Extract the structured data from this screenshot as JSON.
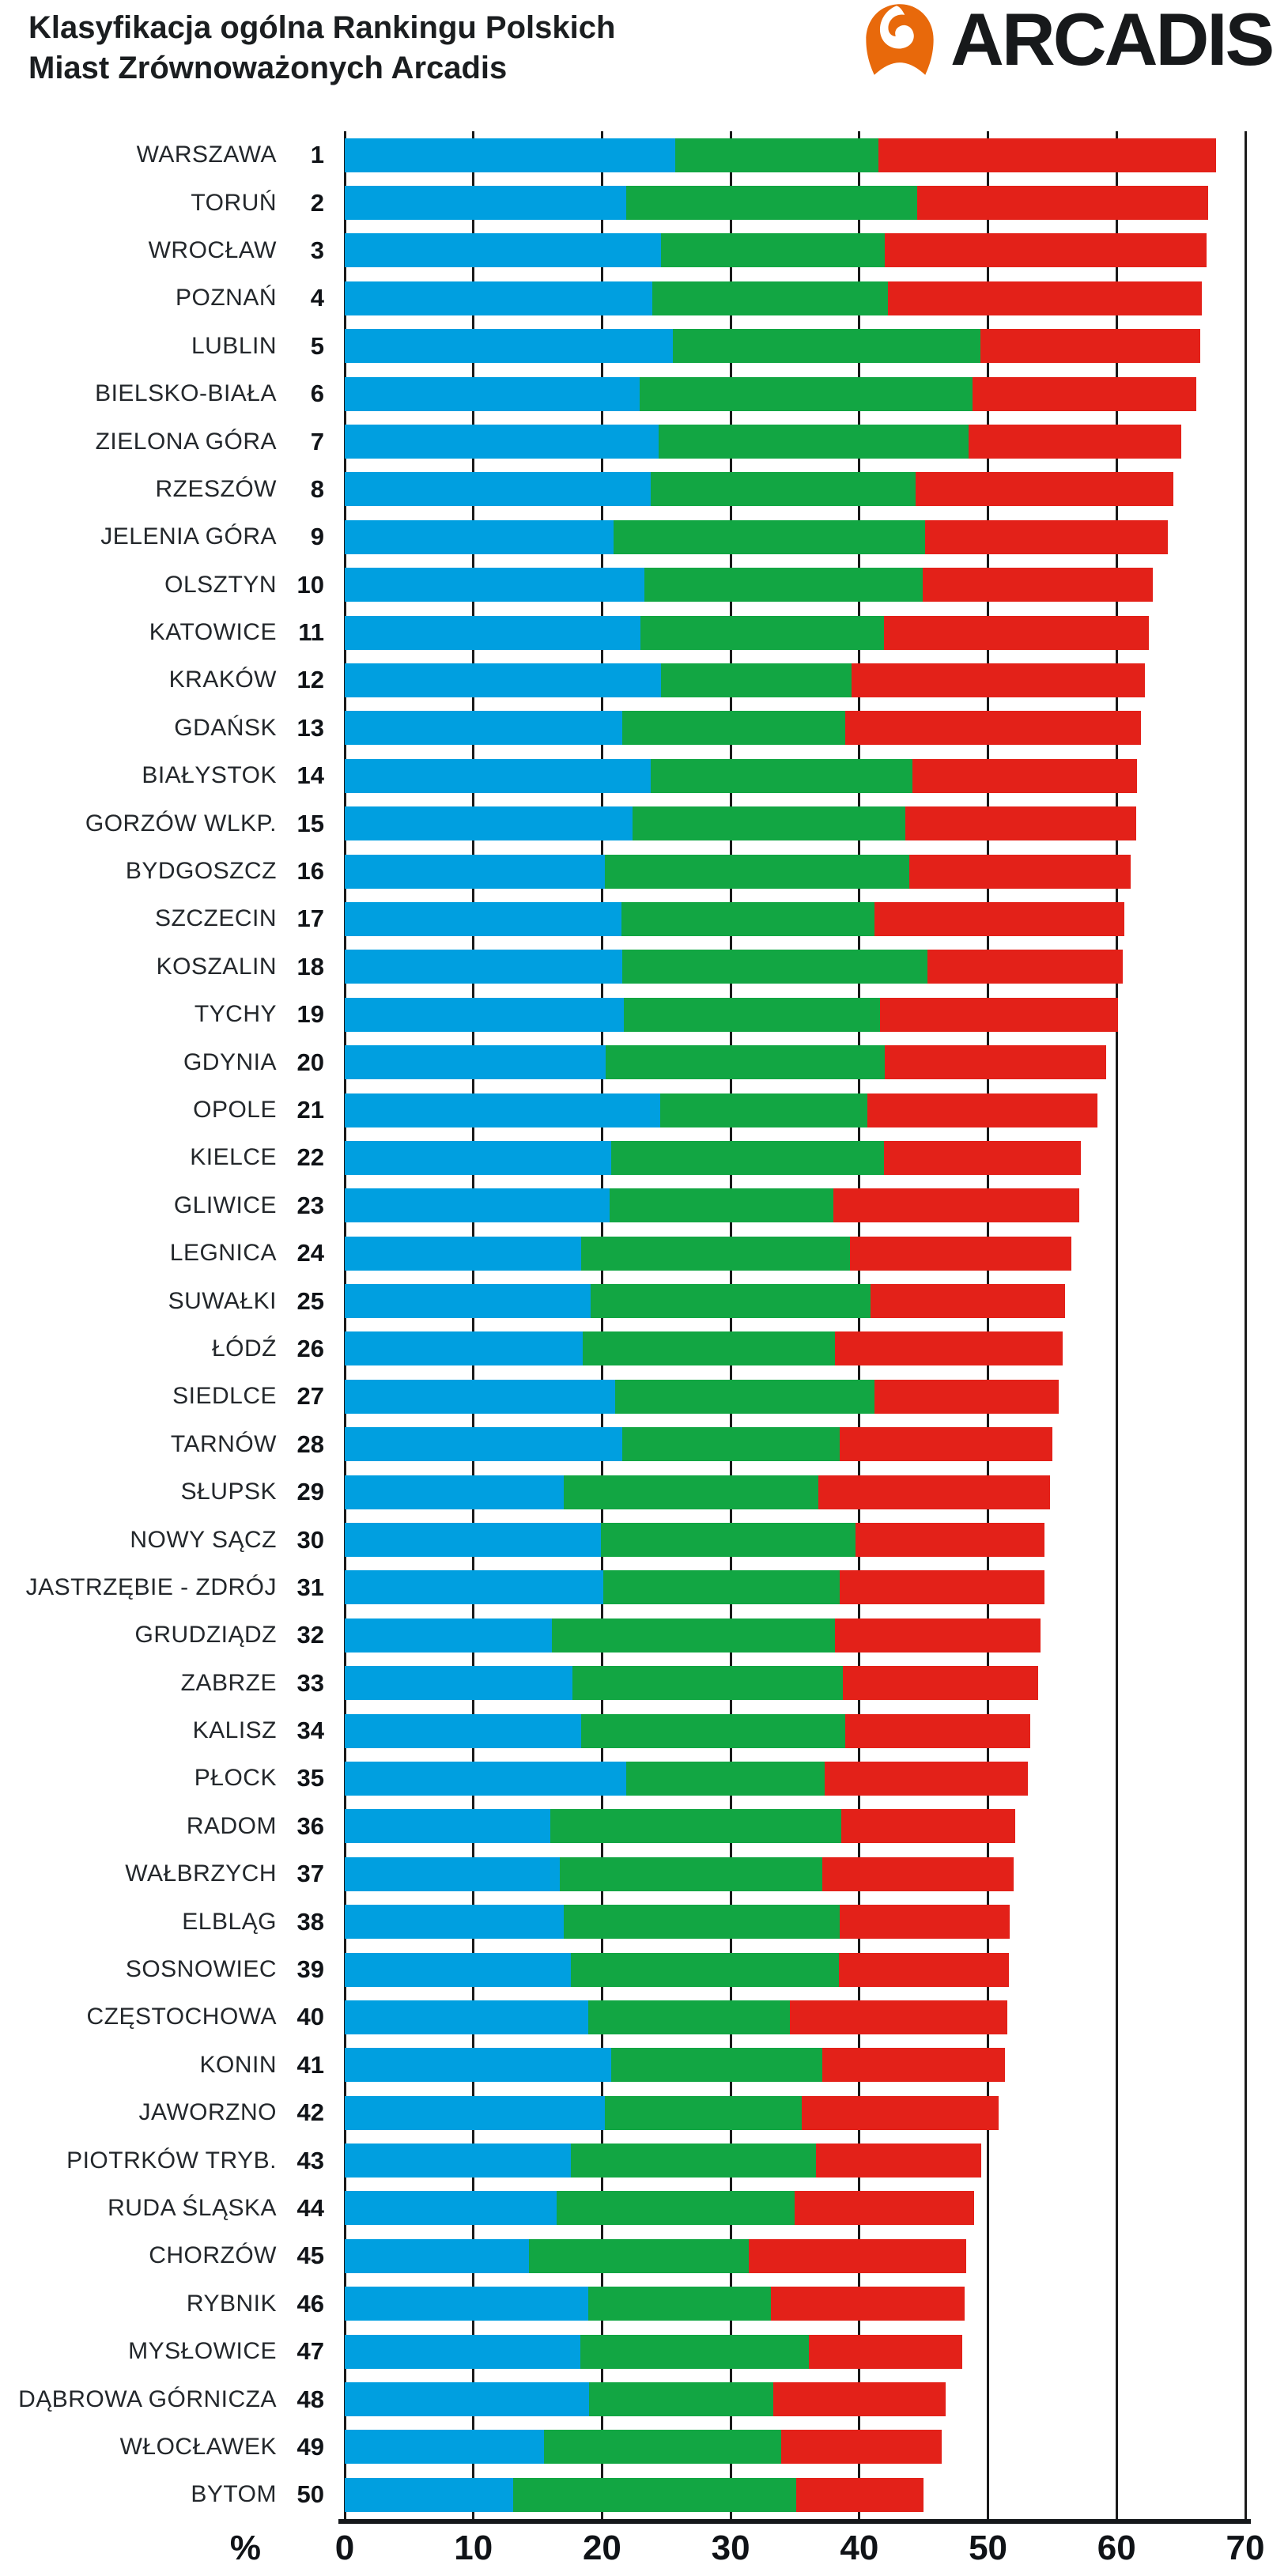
{
  "header": {
    "title_line1": "Klasyfikacja ogólna Rankingu Polskich",
    "title_line2": "Miast Zrównoważonych Arcadis",
    "logo_text": "ARCADIS",
    "logo_color": "#E8690B"
  },
  "chart_data": {
    "type": "bar",
    "orientation": "horizontal",
    "stacked": true,
    "title": "Klasyfikacja ogólna Rankingu Polskich Miast Zrównoważonych Arcadis",
    "xlabel": "%",
    "xlim": [
      0,
      70
    ],
    "xticks": [
      0,
      10,
      20,
      30,
      40,
      50,
      60,
      70
    ],
    "grid": "vertical-lines-every-10",
    "gridline_color": "#1a1a1a",
    "series": [
      {
        "name": "blue",
        "color": "#009FE0"
      },
      {
        "name": "green",
        "color": "#12A643"
      },
      {
        "name": "red",
        "color": "#E32119"
      }
    ],
    "rows": [
      {
        "rank": 1,
        "city": "WARSZAWA",
        "values": [
          25.7,
          15.8,
          26.2
        ]
      },
      {
        "rank": 2,
        "city": "TORUŃ",
        "values": [
          21.9,
          22.6,
          22.6
        ]
      },
      {
        "rank": 3,
        "city": "WROCŁAW",
        "values": [
          24.6,
          17.4,
          25.0
        ]
      },
      {
        "rank": 4,
        "city": "POZNAŃ",
        "values": [
          23.9,
          18.3,
          24.4
        ]
      },
      {
        "rank": 5,
        "city": "LUBLIN",
        "values": [
          25.5,
          23.9,
          17.1
        ]
      },
      {
        "rank": 6,
        "city": "BIELSKO-BIAŁA",
        "values": [
          22.9,
          25.9,
          17.4
        ]
      },
      {
        "rank": 7,
        "city": "ZIELONA GÓRA",
        "values": [
          24.4,
          24.1,
          16.5
        ]
      },
      {
        "rank": 8,
        "city": "RZESZÓW",
        "values": [
          23.8,
          20.6,
          20.0
        ]
      },
      {
        "rank": 9,
        "city": "JELENIA GÓRA",
        "values": [
          20.9,
          24.2,
          18.9
        ]
      },
      {
        "rank": 10,
        "city": "OLSZTYN",
        "values": [
          23.3,
          21.6,
          17.9
        ]
      },
      {
        "rank": 11,
        "city": "KATOWICE",
        "values": [
          23.0,
          18.9,
          20.6
        ]
      },
      {
        "rank": 12,
        "city": "KRAKÓW",
        "values": [
          24.6,
          14.8,
          22.8
        ]
      },
      {
        "rank": 13,
        "city": "GDAŃSK",
        "values": [
          21.6,
          17.3,
          23.0
        ]
      },
      {
        "rank": 14,
        "city": "BIAŁYSTOK",
        "values": [
          23.8,
          20.3,
          17.5
        ]
      },
      {
        "rank": 15,
        "city": "GORZÓW WLKP.",
        "values": [
          22.4,
          21.2,
          17.9
        ]
      },
      {
        "rank": 16,
        "city": "BYDGOSZCZ",
        "values": [
          20.2,
          23.7,
          17.2
        ]
      },
      {
        "rank": 17,
        "city": "SZCZECIN",
        "values": [
          21.5,
          19.7,
          19.4
        ]
      },
      {
        "rank": 18,
        "city": "KOSZALIN",
        "values": [
          21.6,
          23.7,
          15.2
        ]
      },
      {
        "rank": 19,
        "city": "TYCHY",
        "values": [
          21.7,
          19.9,
          18.5
        ]
      },
      {
        "rank": 20,
        "city": "GDYNIA",
        "values": [
          20.3,
          21.7,
          17.2
        ]
      },
      {
        "rank": 21,
        "city": "OPOLE",
        "values": [
          24.5,
          16.1,
          17.9
        ]
      },
      {
        "rank": 22,
        "city": "KIELCE",
        "values": [
          20.7,
          21.2,
          15.3
        ]
      },
      {
        "rank": 23,
        "city": "GLIWICE",
        "values": [
          20.6,
          17.4,
          19.1
        ]
      },
      {
        "rank": 24,
        "city": "LEGNICA",
        "values": [
          18.4,
          20.9,
          17.2
        ]
      },
      {
        "rank": 25,
        "city": "SUWAŁKI",
        "values": [
          19.1,
          21.8,
          15.1
        ]
      },
      {
        "rank": 26,
        "city": "ŁÓDŹ",
        "values": [
          18.5,
          19.6,
          17.7
        ]
      },
      {
        "rank": 27,
        "city": "SIEDLCE",
        "values": [
          21.0,
          20.2,
          14.3
        ]
      },
      {
        "rank": 28,
        "city": "TARNÓW",
        "values": [
          21.6,
          16.9,
          16.5
        ]
      },
      {
        "rank": 29,
        "city": "SŁUPSK",
        "values": [
          17.0,
          19.8,
          18.0
        ]
      },
      {
        "rank": 30,
        "city": "NOWY SĄCZ",
        "values": [
          19.9,
          19.8,
          14.7
        ]
      },
      {
        "rank": 31,
        "city": "JASTRZĘBIE - ZDRÓJ",
        "values": [
          20.1,
          18.4,
          15.9
        ]
      },
      {
        "rank": 32,
        "city": "GRUDZIĄDZ",
        "values": [
          16.1,
          22.0,
          16.0
        ]
      },
      {
        "rank": 33,
        "city": "ZABRZE",
        "values": [
          17.7,
          21.0,
          15.2
        ]
      },
      {
        "rank": 34,
        "city": "KALISZ",
        "values": [
          18.4,
          20.5,
          14.4
        ]
      },
      {
        "rank": 35,
        "city": "PŁOCK",
        "values": [
          21.9,
          15.4,
          15.8
        ]
      },
      {
        "rank": 36,
        "city": "RADOM",
        "values": [
          16.0,
          22.6,
          13.5
        ]
      },
      {
        "rank": 37,
        "city": "WAŁBRZYCH",
        "values": [
          16.7,
          20.4,
          14.9
        ]
      },
      {
        "rank": 38,
        "city": "ELBLĄG",
        "values": [
          17.0,
          21.5,
          13.2
        ]
      },
      {
        "rank": 39,
        "city": "SOSNOWIEC",
        "values": [
          17.6,
          20.8,
          13.2
        ]
      },
      {
        "rank": 40,
        "city": "CZĘSTOCHOWA",
        "values": [
          18.9,
          15.7,
          16.9
        ]
      },
      {
        "rank": 41,
        "city": "KONIN",
        "values": [
          20.7,
          16.4,
          14.2
        ]
      },
      {
        "rank": 42,
        "city": "JAWORZNO",
        "values": [
          20.2,
          15.3,
          15.3
        ]
      },
      {
        "rank": 43,
        "city": "PIOTRKÓW TRYB.",
        "values": [
          17.6,
          19.0,
          12.9
        ]
      },
      {
        "rank": 44,
        "city": "RUDA ŚLĄSKA",
        "values": [
          16.5,
          18.5,
          13.9
        ]
      },
      {
        "rank": 45,
        "city": "CHORZÓW",
        "values": [
          14.3,
          17.1,
          16.9
        ]
      },
      {
        "rank": 46,
        "city": "RYBNIK",
        "values": [
          18.9,
          14.2,
          15.1
        ]
      },
      {
        "rank": 47,
        "city": "MYSŁOWICE",
        "values": [
          18.3,
          17.8,
          11.9
        ]
      },
      {
        "rank": 48,
        "city": "DĄBROWA GÓRNICZA",
        "values": [
          19.0,
          14.3,
          13.4
        ]
      },
      {
        "rank": 49,
        "city": "WŁOCŁAWEK",
        "values": [
          15.5,
          18.4,
          12.5
        ]
      },
      {
        "rank": 50,
        "city": "BYTOM",
        "values": [
          13.1,
          22.0,
          9.9
        ]
      }
    ]
  }
}
